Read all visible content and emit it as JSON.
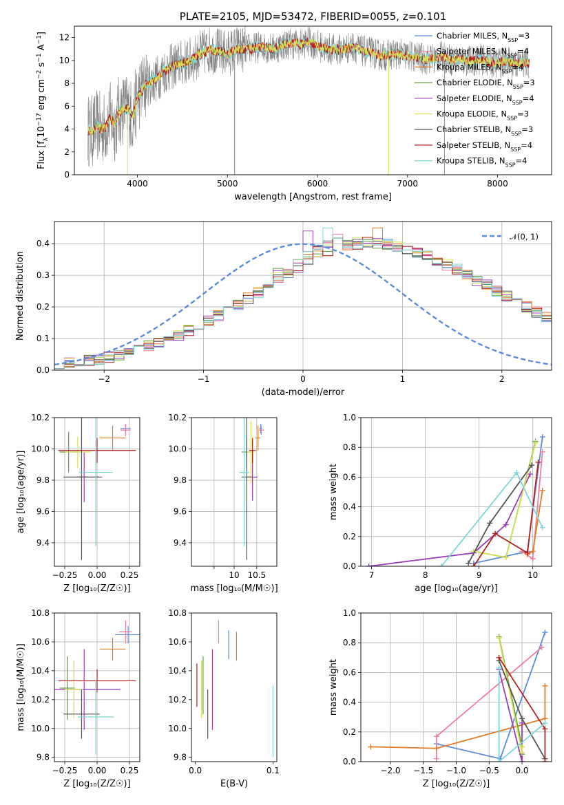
{
  "colors": {
    "chabrier_miles": "#5b8bd9",
    "salpeter_miles": "#ee7f9a",
    "kroupa_miles": "#e07b28",
    "chabrier_elodie": "#5f9e3d",
    "salpeter_elodie": "#9b3db8",
    "kroupa_elodie": "#d8e05a",
    "chabrier_stelib": "#555555",
    "salpeter_stelib": "#b22222",
    "kroupa_stelib": "#7fd6d8",
    "data": "#808080",
    "normal": "#5b8bd9",
    "grid": "#b0b0b0"
  },
  "chart_data": [
    {
      "type": "line",
      "title": "PLATE=2105, MJD=53472, FIBERID=0055, z=0.101",
      "xlabel": "wavelength [Angstrom, rest frame]",
      "ylabel": {
        "pre": "Flux [f",
        "lam": "λ",
        "mid1": "10",
        "exp1": "−17",
        "mid2": " erg cm",
        "exp2": "−2",
        "mid3": " s",
        "exp3": "−1",
        "end": " A",
        "exp4": "−1",
        "close": "]"
      },
      "xlim": [
        3300,
        8600
      ],
      "ylim": [
        0,
        13
      ],
      "xticks": [
        4000,
        5000,
        6000,
        7000,
        8000
      ],
      "yticks": [
        0,
        2,
        4,
        6,
        8,
        10,
        12
      ],
      "grid": false,
      "legend_position": "right",
      "continuum": {
        "x": [
          3450,
          3500,
          3550,
          3600,
          3650,
          3700,
          3750,
          3800,
          3850,
          3900,
          3950,
          4000,
          4100,
          4200,
          4300,
          4400,
          4500,
          4600,
          4700,
          4800,
          4900,
          5000,
          5100,
          5200,
          5300,
          5400,
          5500,
          5600,
          5700,
          5800,
          5900,
          6000,
          6100,
          6200,
          6300,
          6400,
          6500,
          6600,
          6700,
          6800,
          6900,
          7000,
          7100,
          7200,
          7300,
          7400,
          7500,
          7600,
          7700,
          7800,
          7900,
          8000,
          8100,
          8200,
          8300,
          8350
        ],
        "y": [
          3.9,
          3.8,
          4.3,
          4.0,
          4.2,
          5.0,
          4.3,
          5.5,
          5.8,
          5.7,
          5.0,
          6.8,
          8.0,
          8.3,
          9.1,
          9.5,
          9.8,
          10.0,
          10.6,
          10.9,
          10.8,
          10.6,
          11.0,
          11.0,
          11.1,
          11.2,
          11.0,
          11.3,
          11.5,
          11.4,
          11.6,
          11.3,
          11.0,
          10.9,
          11.0,
          11.2,
          10.8,
          10.7,
          10.4,
          10.5,
          10.6,
          10.4,
          10.3,
          10.1,
          10.2,
          10.3,
          10.0,
          10.1,
          9.9,
          10.1,
          9.9,
          9.8,
          9.9,
          9.7,
          9.8,
          9.8
        ]
      },
      "series": [
        {
          "name": "Chabrier MILES",
          "nssp": "3"
        },
        {
          "name": "Salpeter MILES",
          "nssp": "4"
        },
        {
          "name": "Kroupa MILES",
          "nssp": "4"
        },
        {
          "name": "Chabrier ELODIE",
          "nssp": "3"
        },
        {
          "name": "Salpeter ELODIE",
          "nssp": "4"
        },
        {
          "name": "Kroupa ELODIE",
          "nssp": "3"
        },
        {
          "name": "Chabrier STELIB",
          "nssp": "3"
        },
        {
          "name": "Salpeter STELIB",
          "nssp": "4"
        },
        {
          "name": "Kroupa STELIB",
          "nssp": "4"
        }
      ],
      "vlines": [
        {
          "x": 3890,
          "y0": 0,
          "y1": 6
        },
        {
          "x": 5080,
          "y0": 0,
          "y1": 10
        },
        {
          "x": 6790,
          "y0": 0,
          "y1": 10
        },
        {
          "x": 7410,
          "y0": 0,
          "y1": 10
        }
      ],
      "nssp_prefix": "N",
      "nssp_sub": "SSP"
    },
    {
      "type": "step",
      "xlabel": "(data-model)/error",
      "ylabel": "Normed distribution",
      "xlim": [
        -2.5,
        2.5
      ],
      "ylim": [
        0,
        0.47
      ],
      "xticks": [
        -2,
        -1,
        0,
        1,
        2
      ],
      "yticks": [
        0.0,
        0.1,
        0.2,
        0.3,
        0.4
      ],
      "grid": true,
      "legend_position": "top-right",
      "legend_label": "𝒩(0, 1)",
      "bin_width": 0.1,
      "bin_start": -2.5,
      "base": [
        0.02,
        0.022,
        0.025,
        0.03,
        0.035,
        0.041,
        0.048,
        0.056,
        0.065,
        0.075,
        0.086,
        0.098,
        0.111,
        0.125,
        0.14,
        0.156,
        0.173,
        0.19,
        0.208,
        0.227,
        0.246,
        0.266,
        0.285,
        0.304,
        0.323,
        0.341,
        0.357,
        0.372,
        0.385,
        0.394,
        0.4,
        0.404,
        0.403,
        0.398,
        0.392,
        0.382,
        0.372,
        0.36,
        0.347,
        0.333,
        0.318,
        0.302,
        0.285,
        0.268,
        0.251,
        0.234,
        0.217,
        0.2,
        0.184,
        0.168,
        0.153,
        0.139,
        0.126,
        0.113,
        0.101,
        0.09,
        0.08,
        0.07,
        0.062,
        0.054,
        0.047,
        0.041,
        0.036,
        0.031,
        0.027,
        0.024,
        0.021,
        0.019,
        0.017,
        0.015
      ],
      "peaks": [
        0.39,
        0.43,
        0.45,
        0.41,
        0.44,
        0.42,
        0.39,
        0.42,
        0.45,
        0.4
      ]
    },
    {
      "type": "errorbar",
      "xlabel": "Z [log₁₀(Z/Z☉)]",
      "ylabel": "age  [log₁₀(age/yr)]",
      "xlim": [
        -0.33,
        0.33
      ],
      "ylim": [
        9.25,
        10.2
      ],
      "xticks": [
        -0.25,
        0.0,
        0.25
      ],
      "yticks": [
        9.4,
        9.6,
        9.8,
        10.0,
        10.2
      ],
      "grid": true,
      "points": [
        {
          "series": "Chabrier MILES",
          "x": 0.22,
          "y": 10.13,
          "xerr": 0.04,
          "yerr": 0.03
        },
        {
          "series": "Salpeter MILES",
          "x": 0.22,
          "y": 10.12,
          "xerr": 0.04,
          "yerr": 0.04
        },
        {
          "series": "Kroupa MILES",
          "x": 0.12,
          "y": 10.07,
          "xerr": 0.1,
          "yerr": 0.08
        },
        {
          "series": "Chabrier ELODIE",
          "x": -0.22,
          "y": 9.98,
          "xerr": 0.07,
          "yerr": 0.13
        },
        {
          "series": "Salpeter ELODIE",
          "x": -0.1,
          "y": 9.82,
          "xerr": 0.14,
          "yerr": 0.16
        },
        {
          "series": "Kroupa ELODIE",
          "x": -0.15,
          "y": 9.98,
          "xerr": 0.1,
          "yerr": 0.1
        },
        {
          "series": "Chabrier STELIB",
          "x": -0.12,
          "y": 9.82,
          "xerr": 0.14,
          "yerr": 0.53
        },
        {
          "series": "Salpeter STELIB",
          "x": 0.0,
          "y": 9.99,
          "xerr": 0.3,
          "yerr": 0.08
        },
        {
          "series": "Kroupa STELIB",
          "x": -0.01,
          "y": 9.85,
          "xerr": 0.13,
          "yerr": 0.47
        }
      ]
    },
    {
      "type": "errorbar",
      "xlabel": "mass [log₁₀(M/M☉)]",
      "ylabel": "",
      "xlim": [
        7.9,
        11.3
      ],
      "ylim": [
        9.25,
        10.2
      ],
      "xticks": [
        8.8,
        9.6,
        10.5
      ],
      "xticklabels": [
        "",
        "10",
        "10.5"
      ],
      "yticks": [
        9.4,
        9.6,
        9.8,
        10.0,
        10.2
      ],
      "grid": true,
      "points": [
        {
          "series": "Chabrier MILES",
          "x": 10.66,
          "y": 10.13,
          "xerr": 0.06,
          "yerr": 0.03
        },
        {
          "series": "Salpeter MILES",
          "x": 10.68,
          "y": 10.12,
          "xerr": 0.1,
          "yerr": 0.03
        },
        {
          "series": "Kroupa MILES",
          "x": 10.55,
          "y": 10.07,
          "xerr": 0.1,
          "yerr": 0.08
        },
        {
          "series": "Chabrier ELODIE",
          "x": 10.1,
          "y": 9.98,
          "xerr": 0.2,
          "yerr": 0.1
        },
        {
          "series": "Salpeter ELODIE",
          "x": 10.33,
          "y": 9.82,
          "xerr": 0.2,
          "yerr": 0.15
        },
        {
          "series": "Kroupa ELODIE",
          "x": 10.27,
          "y": 9.98,
          "xerr": 0.15,
          "yerr": 0.2
        },
        {
          "series": "Chabrier STELIB",
          "x": 10.1,
          "y": 9.82,
          "xerr": 0.2,
          "yerr": 0.53
        },
        {
          "series": "Salpeter STELIB",
          "x": 10.33,
          "y": 9.99,
          "xerr": 0.13,
          "yerr": 0.08
        },
        {
          "series": "Kroupa STELIB",
          "x": 10.0,
          "y": 9.85,
          "xerr": 0.2,
          "yerr": 0.47
        }
      ]
    },
    {
      "type": "line",
      "xlabel": "age  [log₁₀(age/yr)]",
      "ylabel": "mass weight",
      "xlim": [
        6.8,
        10.35
      ],
      "ylim": [
        0,
        1.0
      ],
      "xticks": [
        7,
        8,
        9,
        10
      ],
      "yticks": [
        0.0,
        0.2,
        0.4,
        0.6,
        0.8,
        1.0
      ],
      "grid": true,
      "series": [
        {
          "name": "Chabrier MILES",
          "x": [
            8.9,
            9.9,
            10.18
          ],
          "y": [
            0.02,
            0.1,
            0.87
          ]
        },
        {
          "name": "Salpeter MILES",
          "x": [
            9.8,
            10.0,
            10.18
          ],
          "y": [
            0.1,
            0.05,
            0.77
          ]
        },
        {
          "name": "Kroupa MILES",
          "x": [
            9.9,
            10.0,
            10.18
          ],
          "y": [
            0.08,
            0.1,
            0.51
          ]
        },
        {
          "name": "Chabrier ELODIE",
          "x": [
            8.9,
            9.5,
            10.05
          ],
          "y": [
            0.1,
            0.06,
            0.84
          ]
        },
        {
          "name": "Salpeter ELODIE",
          "x": [
            6.95,
            8.9,
            9.5,
            9.95
          ],
          "y": [
            0.0,
            0.09,
            0.28,
            0.62
          ]
        },
        {
          "name": "Kroupa ELODIE",
          "x": [
            8.9,
            9.5,
            10.05
          ],
          "y": [
            0.1,
            0.06,
            0.83
          ]
        },
        {
          "name": "Chabrier STELIB",
          "x": [
            8.8,
            9.2,
            9.98
          ],
          "y": [
            0.02,
            0.29,
            0.68
          ]
        },
        {
          "name": "Salpeter STELIB",
          "x": [
            8.9,
            9.3,
            9.9,
            10.1
          ],
          "y": [
            0.0,
            0.22,
            0.09,
            0.7
          ]
        },
        {
          "name": "Kroupa STELIB",
          "x": [
            8.3,
            9.7,
            10.18
          ],
          "y": [
            0.0,
            0.63,
            0.26
          ]
        }
      ]
    },
    {
      "type": "errorbar",
      "xlabel": "Z [log₁₀(Z/Z☉)]",
      "ylabel": "mass [log₁₀(M/M☉)]",
      "xlim": [
        -0.33,
        0.33
      ],
      "ylim": [
        9.77,
        10.8
      ],
      "xticks": [
        -0.25,
        0.0,
        0.25
      ],
      "yticks": [
        9.8,
        10.0,
        10.2,
        10.4,
        10.6,
        10.8
      ],
      "grid": true,
      "points": [
        {
          "series": "Chabrier MILES",
          "x": 0.24,
          "y": 10.65,
          "xerr": 0.1,
          "yerr": 0.06
        },
        {
          "series": "Salpeter MILES",
          "x": 0.22,
          "y": 10.67,
          "xerr": 0.05,
          "yerr": 0.08
        },
        {
          "series": "Kroupa MILES",
          "x": 0.12,
          "y": 10.55,
          "xerr": 0.1,
          "yerr": 0.08
        },
        {
          "series": "Chabrier ELODIE",
          "x": -0.23,
          "y": 10.28,
          "xerr": 0.06,
          "yerr": 0.22
        },
        {
          "series": "Salpeter ELODIE",
          "x": -0.1,
          "y": 10.27,
          "xerr": 0.28,
          "yerr": 0.28
        },
        {
          "series": "Kroupa ELODIE",
          "x": -0.18,
          "y": 10.27,
          "xerr": 0.07,
          "yerr": 0.2
        },
        {
          "series": "Chabrier STELIB",
          "x": -0.12,
          "y": 10.1,
          "xerr": 0.14,
          "yerr": 0.17
        },
        {
          "series": "Salpeter STELIB",
          "x": 0.0,
          "y": 10.33,
          "xerr": 0.3,
          "yerr": 0.08
        },
        {
          "series": "Kroupa STELIB",
          "x": -0.01,
          "y": 10.08,
          "xerr": 0.14,
          "yerr": 0.26
        }
      ]
    },
    {
      "type": "errorbar",
      "xlabel": "E(B-V)",
      "ylabel": "",
      "xlim": [
        -0.005,
        0.105
      ],
      "ylim": [
        9.77,
        10.8
      ],
      "xticks": [
        0.0,
        0.1
      ],
      "yticks": [
        9.8,
        10.0,
        10.2,
        10.4,
        10.6,
        10.8
      ],
      "grid": false,
      "points": [
        {
          "series": "Chabrier MILES",
          "x": 0.043,
          "y": 10.58,
          "xerr": 0,
          "yerr": 0.1
        },
        {
          "series": "Salpeter MILES",
          "x": 0.03,
          "y": 10.67,
          "xerr": 0,
          "yerr": 0.08
        },
        {
          "series": "Kroupa MILES",
          "x": 0.053,
          "y": 10.57,
          "xerr": 0,
          "yerr": 0.1
        },
        {
          "series": "Chabrier ELODIE",
          "x": 0.01,
          "y": 10.3,
          "xerr": 0,
          "yerr": 0.2
        },
        {
          "series": "Salpeter ELODIE",
          "x": 0.022,
          "y": 10.27,
          "xerr": 0,
          "yerr": 0.28
        },
        {
          "series": "Kroupa ELODIE",
          "x": 0.008,
          "y": 10.27,
          "xerr": 0,
          "yerr": 0.2
        },
        {
          "series": "Chabrier STELIB",
          "x": 0.016,
          "y": 10.1,
          "xerr": 0,
          "yerr": 0.17
        },
        {
          "series": "Salpeter STELIB",
          "x": 0.002,
          "y": 10.3,
          "xerr": 0,
          "yerr": 0.15
        },
        {
          "series": "Kroupa STELIB",
          "x": 0.1,
          "y": 10.05,
          "xerr": 0,
          "yerr": 0.25
        }
      ]
    },
    {
      "type": "line",
      "xlabel": "Z [log₁₀(Z/Z☉)]",
      "ylabel": "mass weight",
      "xlim": [
        -2.45,
        0.45
      ],
      "ylim": [
        0,
        1.0
      ],
      "xticks": [
        -2.0,
        -1.5,
        -1.0,
        -0.5,
        0.0
      ],
      "yticks": [
        0.0,
        0.2,
        0.4,
        0.6,
        0.8,
        1.0
      ],
      "grid": true,
      "series": [
        {
          "name": "Chabrier MILES",
          "x": [
            -1.3,
            -0.33,
            0.35
          ],
          "y": [
            0.12,
            0.02,
            0.87
          ]
        },
        {
          "name": "Salpeter MILES",
          "x": [
            -1.3,
            -1.3,
            0.3
          ],
          "y": [
            0.02,
            0.17,
            0.77
          ]
        },
        {
          "name": "Kroupa MILES",
          "x": [
            -2.3,
            -1.3,
            0.35,
            0.35
          ],
          "y": [
            0.1,
            0.09,
            0.29,
            0.51
          ]
        },
        {
          "name": "Chabrier ELODIE",
          "x": [
            -0.35,
            0.0,
            0.0
          ],
          "y": [
            0.84,
            0.1,
            0.05
          ]
        },
        {
          "name": "Salpeter ELODIE",
          "x": [
            -0.35,
            0.0,
            0.0
          ],
          "y": [
            0.62,
            0.0,
            0.26
          ]
        },
        {
          "name": "Kroupa ELODIE",
          "x": [
            -0.35,
            0.0,
            0.0
          ],
          "y": [
            0.83,
            0.06,
            0.1
          ]
        },
        {
          "name": "Chabrier STELIB",
          "x": [
            -0.35,
            0.0,
            0.35
          ],
          "y": [
            0.68,
            0.29,
            0.02
          ]
        },
        {
          "name": "Salpeter STELIB",
          "x": [
            -0.35,
            0.35,
            0.35
          ],
          "y": [
            0.7,
            0.22,
            0.0
          ]
        },
        {
          "name": "Kroupa STELIB",
          "x": [
            -0.35,
            -0.35,
            0.35
          ],
          "y": [
            0.63,
            0.0,
            0.26
          ]
        }
      ]
    }
  ]
}
